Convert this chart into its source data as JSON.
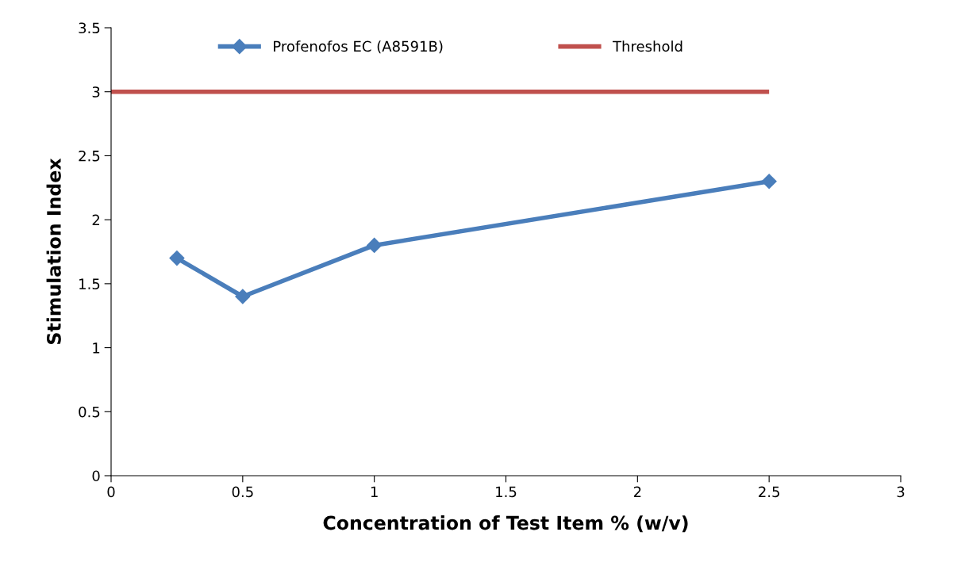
{
  "chart_data": {
    "type": "line",
    "xlabel": "Concentration of Test Item % (w/v)",
    "ylabel": "Stimulation Index",
    "xlim": [
      0,
      3
    ],
    "xticks": [
      0,
      0.5,
      1,
      1.5,
      2,
      2.5,
      3
    ],
    "ylim": [
      0,
      3.5
    ],
    "yticks": [
      0,
      0.5,
      1,
      1.5,
      2,
      2.5,
      3,
      3.5
    ],
    "grid": false,
    "legend": "top",
    "series": [
      {
        "name": "Profenofos EC (A8591B)",
        "color": "#4a7ebb",
        "x": [
          0.25,
          0.5,
          1,
          2.5
        ],
        "values": [
          1.7,
          1.4,
          1.8,
          2.3
        ],
        "marker": "diamond"
      },
      {
        "name": "Threshold",
        "color": "#c0504d",
        "x": [
          0,
          2.5
        ],
        "values": [
          3,
          3
        ],
        "marker": "none"
      }
    ]
  }
}
